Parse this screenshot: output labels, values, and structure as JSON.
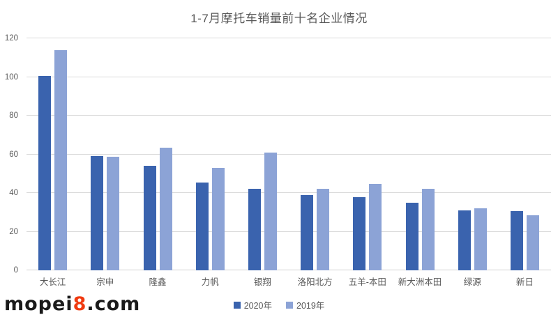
{
  "title": "1-7月摩托车销量前十名企业情况",
  "watermark": {
    "prefix": "mopei",
    "highlight": "8",
    "suffix": ".com",
    "highlight_color": "#f03a10",
    "text_color": "#1a1a1a"
  },
  "chart_data": {
    "type": "bar",
    "title": "1-7月摩托车销量前十名企业情况",
    "categories": [
      "大长江",
      "宗申",
      "隆鑫",
      "力帆",
      "银翔",
      "洛阳北方",
      "五羊-本田",
      "新大洲本田",
      "绿源",
      "新日"
    ],
    "series": [
      {
        "name": "2020年",
        "color": "#3a63ae",
        "values": [
          100.5,
          59.2,
          54,
          45.5,
          42,
          39,
          38,
          35,
          31,
          30.5
        ]
      },
      {
        "name": "2019年",
        "color": "#8ca3d6",
        "values": [
          114,
          58.8,
          63.5,
          53,
          61,
          42,
          44.8,
          42,
          32,
          28.5
        ]
      }
    ],
    "xlabel": "",
    "ylabel": "",
    "ylim": [
      0,
      120
    ],
    "yticks": [
      0,
      20,
      40,
      60,
      80,
      100,
      120
    ],
    "grid": true,
    "gridline_color": "#d9d9d9",
    "legend_position": "bottom",
    "title_color": "#595959",
    "axis_text_color": "#595959"
  }
}
